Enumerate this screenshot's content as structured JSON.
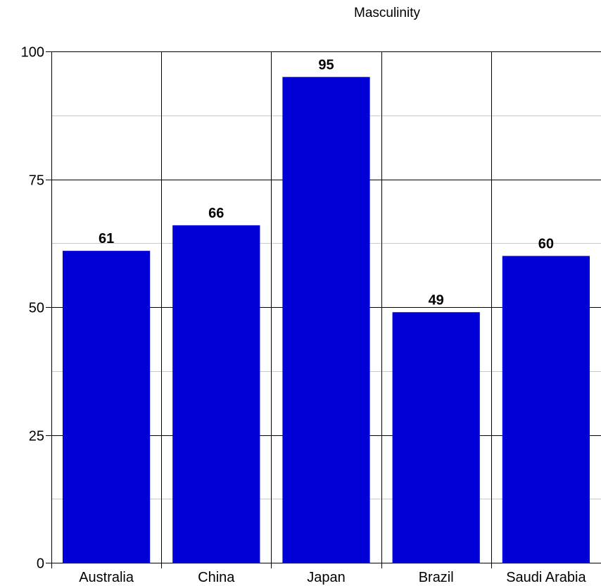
{
  "chart_data": {
    "type": "bar",
    "title": "Masculinity",
    "xlabel": "",
    "ylabel": "",
    "categories": [
      "Australia",
      "China",
      "Japan",
      "Brazil",
      "Saudi Arabia"
    ],
    "values": [
      61,
      66,
      95,
      49,
      60
    ],
    "data_labels": [
      "61",
      "66",
      "95",
      "49",
      "60"
    ],
    "ylim": [
      0,
      100
    ],
    "y_ticks": [
      0,
      25,
      50,
      75,
      100
    ],
    "y_tick_labels": [
      "0",
      "25",
      "50",
      "75",
      "100"
    ],
    "y_minor_ticks": [
      12.5,
      37.5,
      62.5,
      87.5
    ],
    "grid": true,
    "legend": "none",
    "colors": {
      "bar": "#0000d6",
      "major_grid": "#000000",
      "minor_grid": "#c8c8c8",
      "axis": "#000000",
      "background": "#ffffff"
    }
  }
}
